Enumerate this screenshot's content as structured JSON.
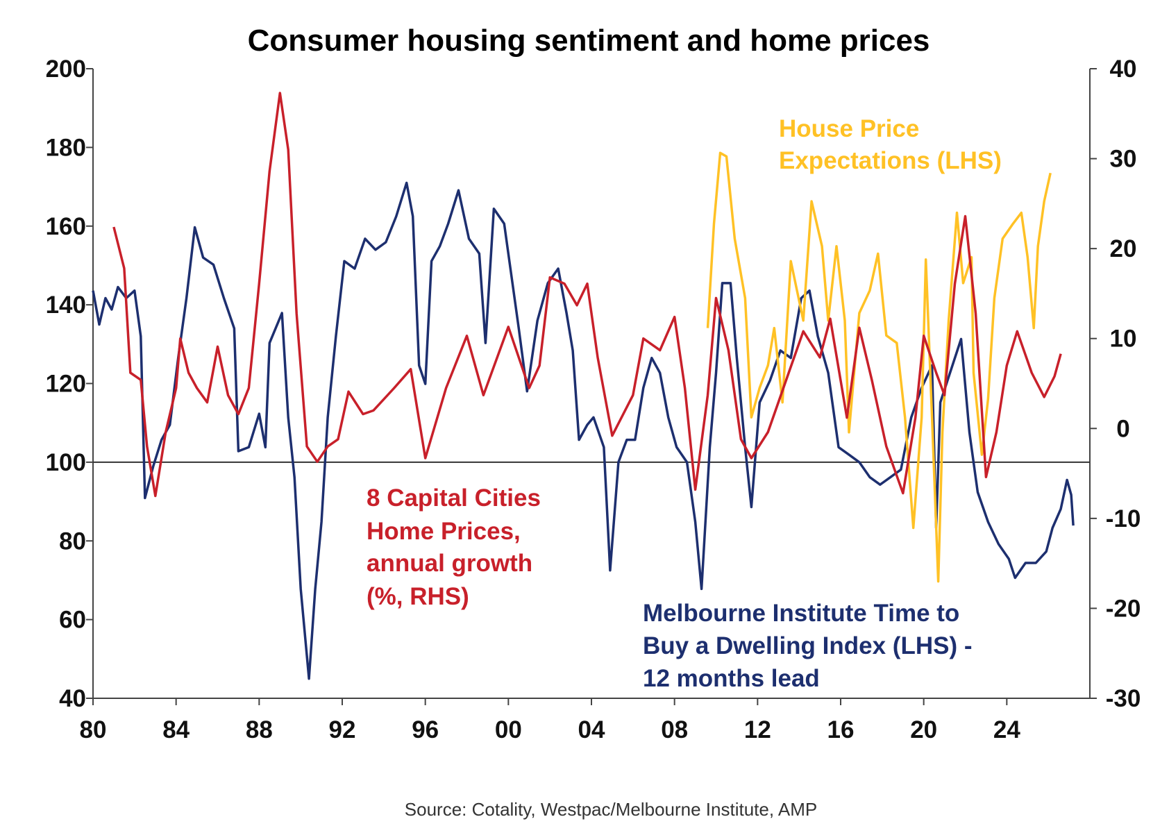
{
  "chart_data": {
    "type": "line",
    "title": "Consumer housing sentiment and home prices",
    "source": "Source: Cotality, Westpac/Melbourne Institute, AMP",
    "x_range": [
      1980,
      2028
    ],
    "x_ticks": [
      1980,
      1984,
      1988,
      1992,
      1996,
      2000,
      2004,
      2008,
      2012,
      2016,
      2020,
      2024
    ],
    "x_tick_labels": [
      "80",
      "84",
      "88",
      "92",
      "96",
      "00",
      "04",
      "08",
      "12",
      "16",
      "20",
      "24"
    ],
    "y_left": {
      "range": [
        40,
        200
      ],
      "ticks": [
        40,
        60,
        80,
        100,
        120,
        140,
        160,
        180,
        200
      ],
      "reference_line": 100
    },
    "y_right": {
      "range": [
        -30,
        40
      ],
      "ticks": [
        -30,
        -20,
        -10,
        0,
        10,
        20,
        30,
        40
      ]
    },
    "grid": false,
    "annotations": {
      "yellow": [
        "House Price",
        "Expectations (LHS)"
      ],
      "red": [
        "8 Capital Cities",
        "Home Prices,",
        "annual growth",
        "(%, RHS)"
      ],
      "blue": [
        "Melbourne Institute Time to",
        "Buy a Dwelling Index (LHS) -",
        "12 months lead"
      ]
    },
    "series": [
      {
        "name": "Melbourne Institute Time to Buy a Dwelling Index (LHS) - 12 months lead",
        "axis": "left",
        "color": "#1d2f6f",
        "points": [
          [
            1980.0,
            143.6
          ],
          [
            1980.3,
            135
          ],
          [
            1980.6,
            141.7
          ],
          [
            1980.9,
            138.8
          ],
          [
            1981.2,
            144.5
          ],
          [
            1981.6,
            141.7
          ],
          [
            1982.0,
            143.6
          ],
          [
            1982.3,
            132
          ],
          [
            1982.5,
            90.9
          ],
          [
            1982.9,
            99
          ],
          [
            1983.3,
            105.7
          ],
          [
            1983.7,
            109.5
          ],
          [
            1984.1,
            126.5
          ],
          [
            1984.5,
            141.7
          ],
          [
            1984.9,
            159.7
          ],
          [
            1985.3,
            152
          ],
          [
            1985.8,
            150.2
          ],
          [
            1986.3,
            141.7
          ],
          [
            1986.8,
            134
          ],
          [
            1987.0,
            102.8
          ],
          [
            1987.5,
            103.8
          ],
          [
            1988.0,
            112.3
          ],
          [
            1988.3,
            103.8
          ],
          [
            1988.5,
            130.3
          ],
          [
            1989.1,
            137.9
          ],
          [
            1989.4,
            111.4
          ],
          [
            1989.7,
            96.2
          ],
          [
            1990.0,
            67.8
          ],
          [
            1990.4,
            45
          ],
          [
            1990.7,
            67.8
          ],
          [
            1991.0,
            84.8
          ],
          [
            1991.3,
            111.4
          ],
          [
            1991.7,
            132.2
          ],
          [
            1992.1,
            151.1
          ],
          [
            1992.6,
            149.2
          ],
          [
            1993.1,
            156.8
          ],
          [
            1993.6,
            154
          ],
          [
            1994.1,
            155.9
          ],
          [
            1994.6,
            162.5
          ],
          [
            1995.1,
            171
          ],
          [
            1995.4,
            162.5
          ],
          [
            1995.7,
            124.6
          ],
          [
            1996.0,
            119.9
          ],
          [
            1996.3,
            151.1
          ],
          [
            1996.7,
            154.9
          ],
          [
            1997.1,
            160.6
          ],
          [
            1997.6,
            169.1
          ],
          [
            1998.1,
            156.8
          ],
          [
            1998.6,
            153
          ],
          [
            1998.9,
            130.3
          ],
          [
            1999.3,
            164.4
          ],
          [
            1999.8,
            160.6
          ],
          [
            2000.1,
            149.2
          ],
          [
            2000.5,
            134
          ],
          [
            2000.9,
            118
          ],
          [
            2001.4,
            136
          ],
          [
            2001.9,
            145.5
          ],
          [
            2002.4,
            149.2
          ],
          [
            2002.8,
            137.9
          ],
          [
            2003.1,
            128.4
          ],
          [
            2003.4,
            105.7
          ],
          [
            2003.8,
            109.5
          ],
          [
            2004.1,
            111.4
          ],
          [
            2004.6,
            103.8
          ],
          [
            2004.9,
            72.5
          ],
          [
            2005.3,
            100
          ],
          [
            2005.7,
            105.7
          ],
          [
            2006.1,
            105.7
          ],
          [
            2006.5,
            118.9
          ],
          [
            2006.9,
            126.5
          ],
          [
            2007.3,
            122.7
          ],
          [
            2007.7,
            111.4
          ],
          [
            2008.1,
            103.8
          ],
          [
            2008.6,
            100
          ],
          [
            2009.0,
            84.8
          ],
          [
            2009.3,
            67.8
          ],
          [
            2009.7,
            103.8
          ],
          [
            2010.0,
            122.7
          ],
          [
            2010.3,
            145.5
          ],
          [
            2010.7,
            145.5
          ],
          [
            2011.0,
            126.5
          ],
          [
            2011.4,
            103.8
          ],
          [
            2011.7,
            88.6
          ],
          [
            2012.1,
            115.2
          ],
          [
            2012.6,
            120.8
          ],
          [
            2013.1,
            128.4
          ],
          [
            2013.6,
            126.5
          ],
          [
            2014.1,
            141.7
          ],
          [
            2014.5,
            143.6
          ],
          [
            2014.9,
            132
          ],
          [
            2015.4,
            122.7
          ],
          [
            2015.9,
            103.8
          ],
          [
            2016.4,
            101.9
          ],
          [
            2016.9,
            100
          ],
          [
            2017.4,
            96.2
          ],
          [
            2017.9,
            94.3
          ],
          [
            2018.4,
            96.2
          ],
          [
            2018.9,
            98.1
          ],
          [
            2019.4,
            111.4
          ],
          [
            2019.9,
            118.9
          ],
          [
            2020.4,
            124.6
          ],
          [
            2020.6,
            83.3
          ],
          [
            2020.8,
            115.2
          ],
          [
            2021.8,
            131.3
          ],
          [
            2022.2,
            107.6
          ],
          [
            2022.6,
            92.4
          ],
          [
            2023.1,
            84.8
          ],
          [
            2023.6,
            79.2
          ],
          [
            2024.1,
            75.4
          ],
          [
            2024.4,
            70.6
          ],
          [
            2024.9,
            74.4
          ],
          [
            2025.4,
            74.4
          ],
          [
            2025.9,
            77.3
          ],
          [
            2026.2,
            83.3
          ],
          [
            2026.6,
            88.1
          ],
          [
            2026.9,
            95.5
          ],
          [
            2027.1,
            91.7
          ],
          [
            2027.2,
            83.9
          ]
        ]
      },
      {
        "name": "8 Capital Cities Home Prices, annual growth (%, RHS)",
        "axis": "right",
        "color": "#c8202a",
        "points": [
          [
            1981.0,
            22.4
          ],
          [
            1981.5,
            17.8
          ],
          [
            1981.8,
            6.2
          ],
          [
            1982.3,
            5.4
          ],
          [
            1982.6,
            -2
          ],
          [
            1983.0,
            -7.5
          ],
          [
            1983.5,
            -0.4
          ],
          [
            1984.0,
            4.5
          ],
          [
            1984.2,
            10
          ],
          [
            1984.6,
            6.2
          ],
          [
            1985.0,
            4.5
          ],
          [
            1985.5,
            2.9
          ],
          [
            1985.8,
            6.6
          ],
          [
            1986.0,
            9.1
          ],
          [
            1986.5,
            3.7
          ],
          [
            1987.0,
            1.6
          ],
          [
            1987.5,
            4.5
          ],
          [
            1988.0,
            16.1
          ],
          [
            1988.5,
            28.6
          ],
          [
            1989.0,
            37.3
          ],
          [
            1989.4,
            31
          ],
          [
            1989.8,
            12.8
          ],
          [
            1990.3,
            -2
          ],
          [
            1990.8,
            -3.7
          ],
          [
            1991.3,
            -2
          ],
          [
            1991.8,
            -1.2
          ],
          [
            1992.3,
            4.1
          ],
          [
            1993.0,
            1.6
          ],
          [
            1993.5,
            2
          ],
          [
            1994.5,
            4.5
          ],
          [
            1995.3,
            6.6
          ],
          [
            1996.0,
            -3.3
          ],
          [
            1997.0,
            4.5
          ],
          [
            1998.0,
            10.3
          ],
          [
            1998.8,
            3.7
          ],
          [
            2000.0,
            11.3
          ],
          [
            2001.0,
            4.5
          ],
          [
            2001.5,
            7
          ],
          [
            2002.0,
            16.8
          ],
          [
            2002.7,
            16.1
          ],
          [
            2003.3,
            13.7
          ],
          [
            2003.8,
            16.1
          ],
          [
            2004.3,
            7.9
          ],
          [
            2005.0,
            -0.8
          ],
          [
            2006.0,
            3.7
          ],
          [
            2006.5,
            10
          ],
          [
            2007.3,
            8.7
          ],
          [
            2008.0,
            12.4
          ],
          [
            2008.5,
            4.5
          ],
          [
            2009.0,
            -6.8
          ],
          [
            2009.6,
            3.7
          ],
          [
            2010.0,
            14.5
          ],
          [
            2010.6,
            8.7
          ],
          [
            2011.2,
            -1.2
          ],
          [
            2011.7,
            -3.3
          ],
          [
            2012.5,
            -0.4
          ],
          [
            2013.5,
            6.2
          ],
          [
            2014.2,
            10.8
          ],
          [
            2015.0,
            7.9
          ],
          [
            2015.5,
            12.2
          ],
          [
            2016.3,
            1.2
          ],
          [
            2016.9,
            11.2
          ],
          [
            2017.5,
            5.4
          ],
          [
            2018.2,
            -2
          ],
          [
            2019.0,
            -7.2
          ],
          [
            2019.6,
            1.2
          ],
          [
            2020.0,
            10.3
          ],
          [
            2020.6,
            6.2
          ],
          [
            2021.0,
            3.7
          ],
          [
            2021.5,
            16.1
          ],
          [
            2022.0,
            23.6
          ],
          [
            2022.5,
            12.8
          ],
          [
            2023.0,
            -5.4
          ],
          [
            2023.5,
            -0.4
          ],
          [
            2024.0,
            7
          ],
          [
            2024.5,
            10.8
          ],
          [
            2025.2,
            6.2
          ],
          [
            2025.8,
            3.5
          ],
          [
            2026.3,
            5.8
          ],
          [
            2026.6,
            8.3
          ]
        ]
      },
      {
        "name": "House Price Expectations (LHS)",
        "axis": "left",
        "color": "#ffc125",
        "points": [
          [
            2009.6,
            134.1
          ],
          [
            2009.9,
            160.6
          ],
          [
            2010.2,
            178.6
          ],
          [
            2010.5,
            177.7
          ],
          [
            2010.9,
            156.8
          ],
          [
            2011.4,
            141.7
          ],
          [
            2011.7,
            111.4
          ],
          [
            2012.1,
            118.9
          ],
          [
            2012.5,
            124.6
          ],
          [
            2012.8,
            134.1
          ],
          [
            2013.2,
            115.2
          ],
          [
            2013.6,
            151.1
          ],
          [
            2014.2,
            136
          ],
          [
            2014.6,
            166.3
          ],
          [
            2015.1,
            154.9
          ],
          [
            2015.4,
            136
          ],
          [
            2015.8,
            154.9
          ],
          [
            2016.2,
            136
          ],
          [
            2016.4,
            107.6
          ],
          [
            2016.9,
            137.9
          ],
          [
            2017.4,
            143.6
          ],
          [
            2017.8,
            153
          ],
          [
            2018.2,
            132.2
          ],
          [
            2018.7,
            130.3
          ],
          [
            2019.1,
            111.4
          ],
          [
            2019.5,
            83.3
          ],
          [
            2019.9,
            111.4
          ],
          [
            2020.1,
            151.5
          ],
          [
            2020.4,
            111.4
          ],
          [
            2020.7,
            69.7
          ],
          [
            2020.9,
            107.6
          ],
          [
            2021.2,
            136
          ],
          [
            2021.6,
            163.4
          ],
          [
            2021.9,
            145.5
          ],
          [
            2022.3,
            152.1
          ],
          [
            2022.4,
            122.7
          ],
          [
            2022.8,
            101.9
          ],
          [
            2023.1,
            116.1
          ],
          [
            2023.4,
            141.7
          ],
          [
            2023.8,
            156.8
          ],
          [
            2024.3,
            160.6
          ],
          [
            2024.7,
            163.4
          ],
          [
            2025.0,
            152.1
          ],
          [
            2025.3,
            134.1
          ],
          [
            2025.5,
            154.9
          ],
          [
            2025.8,
            166.3
          ],
          [
            2026.1,
            173.5
          ]
        ]
      }
    ]
  }
}
